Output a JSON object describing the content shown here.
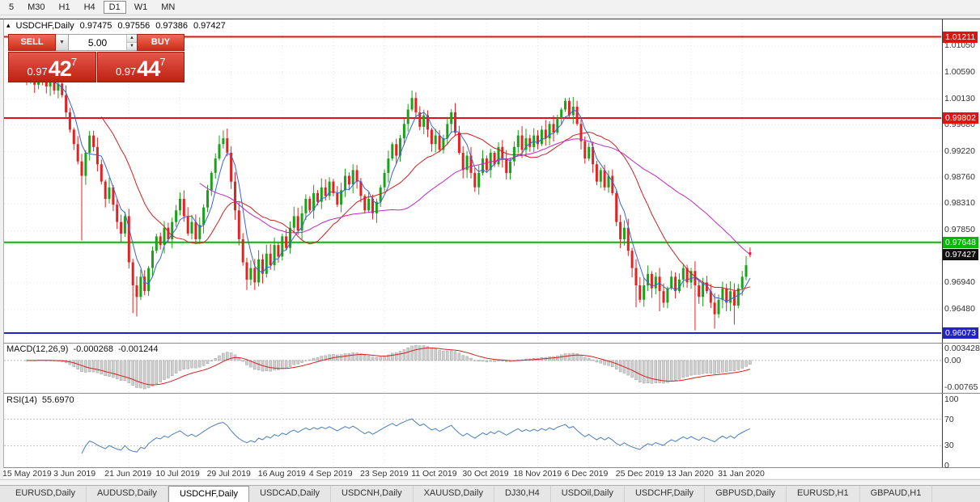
{
  "toolbar": {
    "items": [
      "5",
      "M30",
      "H1",
      "H4",
      "D1",
      "W1",
      "MN"
    ],
    "active": "D1"
  },
  "quote": {
    "collapse_icon": "▴",
    "symbol": "USDCHF,Daily",
    "open": "0.97475",
    "high": "0.97556",
    "low": "0.97386",
    "close": "0.97427"
  },
  "trade_panel": {
    "sell_label": "SELL",
    "buy_label": "BUY",
    "volume": "5.00",
    "dropdown_icon": "▼",
    "spin_up_icon": "▲",
    "spin_down_icon": "▼",
    "bid": {
      "prefix": "0.97",
      "big": "42",
      "sup": "7"
    },
    "ask": {
      "prefix": "0.97",
      "big": "44",
      "sup": "7"
    }
  },
  "price_axis": {
    "ticks": [
      {
        "label": "1.01050",
        "price": 1.0105
      },
      {
        "label": "1.00590",
        "price": 1.0059
      },
      {
        "label": "1.00130",
        "price": 1.0013
      },
      {
        "label": "0.99680",
        "price": 0.9968
      },
      {
        "label": "0.99220",
        "price": 0.9922
      },
      {
        "label": "0.98760",
        "price": 0.9876
      },
      {
        "label": "0.98310",
        "price": 0.9831
      },
      {
        "label": "0.97850",
        "price": 0.9785
      },
      {
        "label": "0.96940",
        "price": 0.9694
      },
      {
        "label": "0.96480",
        "price": 0.9648
      }
    ],
    "levels": [
      {
        "label": "1.01211",
        "price": 1.01211,
        "color": "#e01212",
        "line": true
      },
      {
        "label": "0.99802",
        "price": 0.99802,
        "color": "#e01212",
        "line": true
      },
      {
        "label": "0.97648",
        "price": 0.97648,
        "color": "#00ba00",
        "line": true
      },
      {
        "label": "0.97427",
        "price": 0.97427,
        "color": "#101010",
        "line": false
      },
      {
        "label": "0.96073",
        "price": 0.96073,
        "color": "#2222cc",
        "line": true
      }
    ]
  },
  "macd_panel": {
    "title": "MACD(12,26,9)",
    "value_main": "-0.000268",
    "value_signal": "-0.001244",
    "axis": [
      {
        "label": "0.003428",
        "v": 0.003428
      },
      {
        "label": "0.00",
        "v": 0
      },
      {
        "label": "-0.00765",
        "v": -0.00765
      }
    ]
  },
  "rsi_panel": {
    "title": "RSI(14)",
    "value": "55.6970",
    "axis": [
      {
        "label": "100",
        "v": 100
      },
      {
        "label": "70",
        "v": 70
      },
      {
        "label": "30",
        "v": 30
      },
      {
        "label": "0",
        "v": 0
      }
    ],
    "levels": [
      70,
      30
    ]
  },
  "date_axis": [
    "15 May 2019",
    "3 Jun 2019",
    "21 Jun 2019",
    "10 Jul 2019",
    "29 Jul 2019",
    "16 Aug 2019",
    "4 Sep 2019",
    "23 Sep 2019",
    "11 Oct 2019",
    "30 Oct 2019",
    "18 Nov 2019",
    "6 Dec 2019",
    "25 Dec 2019",
    "13 Jan 2020",
    "31 Jan 2020"
  ],
  "tabs": {
    "items": [
      "EURUSD,Daily",
      "AUDUSD,Daily",
      "USDCHF,Daily",
      "USDCAD,Daily",
      "USDCNH,Daily",
      "XAUUSD,Daily",
      "DJ30,H4",
      "USDOil,Daily",
      "USDCHF,Daily",
      "GBPUSD,Daily",
      "EURUSD,H1",
      "GBPAUD,H1"
    ],
    "active_index": 2
  },
  "chart_data": {
    "type": "candlestick",
    "symbol": "USDCHF",
    "timeframe": "Daily",
    "visible_ohlc": {
      "open": 0.97475,
      "high": 0.97556,
      "low": 0.97386,
      "close": 0.97427
    },
    "bid": 0.97427,
    "ask": 0.97447,
    "levels": {
      "resistance_upper": 1.01211,
      "resistance": 0.99802,
      "support_green": 0.97648,
      "last_price": 0.97427,
      "support_lower": 0.96073
    },
    "y_ticks": [
      1.0105,
      1.0059,
      1.0013,
      0.9968,
      0.9922,
      0.9876,
      0.9831,
      0.9785,
      0.9694,
      0.9648
    ],
    "x_dates": [
      "15 May 2019",
      "3 Jun 2019",
      "21 Jun 2019",
      "10 Jul 2019",
      "29 Jul 2019",
      "16 Aug 2019",
      "4 Sep 2019",
      "23 Sep 2019",
      "11 Oct 2019",
      "30 Oct 2019",
      "18 Nov 2019",
      "6 Dec 2019",
      "25 Dec 2019",
      "13 Jan 2020",
      "31 Jan 2020"
    ],
    "closes": [
      1.0045,
      1.0052,
      1.0038,
      1.006,
      1.0048,
      1.0035,
      1.0042,
      1.0028,
      1.004,
      1.002,
      0.999,
      0.996,
      0.9935,
      0.9905,
      0.988,
      0.992,
      0.995,
      0.993,
      0.99,
      0.987,
      0.984,
      0.986,
      0.983,
      0.98,
      0.978,
      0.981,
      0.973,
      0.969,
      0.967,
      0.9705,
      0.968,
      0.972,
      0.975,
      0.9775,
      0.976,
      0.979,
      0.977,
      0.98,
      0.982,
      0.984,
      0.981,
      0.978,
      0.98,
      0.977,
      0.9795,
      0.9825,
      0.9855,
      0.9885,
      0.991,
      0.9935,
      0.9945,
      0.992,
      0.987,
      0.982,
      0.977,
      0.973,
      0.97,
      0.972,
      0.9695,
      0.9735,
      0.971,
      0.9745,
      0.9725,
      0.976,
      0.974,
      0.9775,
      0.9755,
      0.979,
      0.981,
      0.9785,
      0.9815,
      0.984,
      0.982,
      0.985,
      0.9835,
      0.986,
      0.9845,
      0.987,
      0.985,
      0.983,
      0.9855,
      0.988,
      0.9865,
      0.989,
      0.987,
      0.9845,
      0.982,
      0.984,
      0.9815,
      0.9835,
      0.986,
      0.9885,
      0.991,
      0.9935,
      0.9915,
      0.9945,
      0.997,
      0.9995,
      1.0015,
      0.999,
      0.9965,
      0.9985,
      0.996,
      0.9935,
      0.995,
      0.9925,
      0.9945,
      0.997,
      0.999,
      0.9955,
      0.992,
      0.989,
      0.9915,
      0.9885,
      0.986,
      0.9885,
      0.991,
      0.989,
      0.992,
      0.99,
      0.993,
      0.991,
      0.9885,
      0.9905,
      0.993,
      0.995,
      0.9925,
      0.9945,
      0.993,
      0.995,
      0.9935,
      0.996,
      0.9945,
      0.997,
      0.9955,
      0.998,
      0.9995,
      1.001,
      0.9985,
      1.0,
      0.997,
      0.994,
      0.991,
      0.993,
      0.99,
      0.987,
      0.989,
      0.986,
      0.988,
      0.985,
      0.98,
      0.977,
      0.979,
      0.975,
      0.972,
      0.969,
      0.9665,
      0.969,
      0.971,
      0.9685,
      0.9705,
      0.968,
      0.966,
      0.9685,
      0.9705,
      0.968,
      0.97,
      0.972,
      0.9695,
      0.9715,
      0.969,
      0.967,
      0.9695,
      0.968,
      0.966,
      0.964,
      0.9665,
      0.9685,
      0.966,
      0.968,
      0.9655,
      0.9685,
      0.9705,
      0.9725,
      0.97427
    ],
    "candle_overrides": {
      "3": {
        "h": 1.0068
      },
      "14": {
        "l": 0.9768
      },
      "27": {
        "l": 0.9642
      },
      "28": {
        "l": 0.9636
      },
      "56": {
        "l": 0.9682
      },
      "98": {
        "h": 1.0028
      },
      "137": {
        "h": 1.0015
      },
      "155": {
        "l": 0.9652
      },
      "161": {
        "l": 0.9645
      },
      "170": {
        "l": 0.9612
      },
      "175": {
        "l": 0.9615
      },
      "180": {
        "l": 0.9622
      },
      "184": {
        "o": 0.97475,
        "h": 0.97556,
        "l": 0.97386,
        "c": 0.97427
      }
    },
    "indicators": {
      "macd": {
        "fast": 12,
        "slow": 26,
        "signal": 9,
        "last_main": -0.000268,
        "last_signal": -0.001244,
        "axis_max": 0.003428,
        "axis_min": -0.00765
      },
      "rsi": {
        "period": 14,
        "last": 55.697,
        "levels": [
          70,
          30
        ]
      },
      "moving_averages": [
        {
          "period": 5,
          "color": "#3b62d9"
        },
        {
          "period": 20,
          "color": "#d02020"
        },
        {
          "period": 45,
          "color": "#c028c0"
        }
      ]
    },
    "style": {
      "bull": "#18a318",
      "bear": "#e32222",
      "grid": "#e4e4e4",
      "chart_bg": "#ffffff",
      "macd_hist_fill": "#cfcfcf",
      "macd_hist_stroke": "#9e9e9e",
      "macd_signal": "#d02020",
      "rsi_line": "#4a7ebb",
      "rsi_level": "#c4c4c4"
    }
  }
}
